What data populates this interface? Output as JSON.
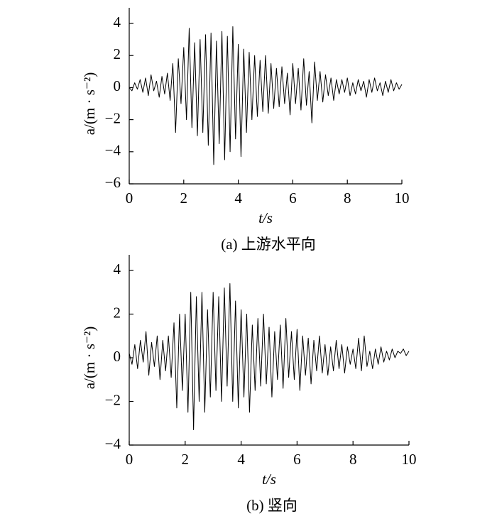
{
  "chart_data": [
    {
      "type": "line",
      "caption": "(a) 上游水平向",
      "xlabel": "t/s",
      "ylabel": "a/(m · s⁻²)",
      "color": "#000000",
      "x": [
        0,
        0.1,
        0.2,
        0.3,
        0.4,
        0.5,
        0.6,
        0.7,
        0.8,
        0.9,
        1,
        1.1,
        1.2,
        1.3,
        1.4,
        1.5,
        1.6,
        1.7,
        1.8,
        1.9,
        2,
        2.1,
        2.2,
        2.3,
        2.4,
        2.5,
        2.6,
        2.7,
        2.8,
        2.9,
        3,
        3.1,
        3.2,
        3.3,
        3.4,
        3.5,
        3.6,
        3.7,
        3.8,
        3.9,
        4,
        4.1,
        4.2,
        4.3,
        4.4,
        4.5,
        4.6,
        4.7,
        4.8,
        4.9,
        5,
        5.1,
        5.2,
        5.3,
        5.4,
        5.5,
        5.6,
        5.7,
        5.8,
        5.9,
        6,
        6.1,
        6.2,
        6.3,
        6.4,
        6.5,
        6.6,
        6.7,
        6.8,
        6.9,
        7,
        7.1,
        7.2,
        7.3,
        7.4,
        7.5,
        7.6,
        7.7,
        7.8,
        7.9,
        8,
        8.1,
        8.2,
        8.3,
        8.4,
        8.5,
        8.6,
        8.7,
        8.8,
        8.9,
        9,
        9.1,
        9.2,
        9.3,
        9.4,
        9.5,
        9.6,
        9.7,
        9.8,
        9.9,
        10
      ],
      "values": [
        0,
        -0.2,
        0.3,
        -0.1,
        0.5,
        -0.3,
        0.6,
        -0.5,
        0.8,
        -0.2,
        0.4,
        -0.6,
        0.7,
        -0.4,
        0.9,
        -0.8,
        1.5,
        -2.8,
        1.8,
        -1.0,
        2.5,
        -2.0,
        3.7,
        -2.5,
        2.8,
        -3.0,
        3.0,
        -2.8,
        3.3,
        -3.6,
        3.4,
        -4.8,
        2.9,
        -3.5,
        3.5,
        -4.5,
        3.2,
        -4.0,
        3.8,
        -3.2,
        2.7,
        -4.3,
        2.4,
        -2.8,
        2.2,
        -2.0,
        2.0,
        -1.8,
        1.7,
        -1.5,
        2.0,
        -1.6,
        1.5,
        -1.3,
        1.2,
        -1.2,
        1.3,
        -1.0,
        0.9,
        -1.7,
        1.5,
        -1.0,
        1.2,
        -1.4,
        1.8,
        -1.1,
        1.0,
        -2.2,
        1.6,
        -0.8,
        1.0,
        -0.9,
        0.8,
        -0.5,
        0.6,
        -0.8,
        0.5,
        -0.4,
        0.5,
        -0.3,
        0.6,
        -0.5,
        0.3,
        -0.4,
        0.5,
        -0.2,
        0.4,
        -0.6,
        0.5,
        -0.3,
        0.6,
        -0.2,
        0.3,
        -0.5,
        0.4,
        -0.3,
        0.5,
        -0.2,
        0.3,
        -0.1,
        0.2
      ],
      "xlim": [
        0,
        10
      ],
      "xticks": [
        0,
        2,
        4,
        6,
        8,
        10
      ],
      "ylim": [
        -6,
        4
      ],
      "yticks": [
        {
          "value": -6,
          "label": "−6"
        },
        {
          "value": -4,
          "label": "−4"
        },
        {
          "value": -2,
          "label": "−2"
        },
        0,
        2,
        4
      ]
    },
    {
      "type": "line",
      "caption": "(b) 竖向",
      "xlabel": "t/s",
      "ylabel": "a/(m · s⁻²)",
      "color": "#000000",
      "x": [
        0,
        0.1,
        0.2,
        0.3,
        0.4,
        0.5,
        0.6,
        0.7,
        0.8,
        0.9,
        1,
        1.1,
        1.2,
        1.3,
        1.4,
        1.5,
        1.6,
        1.7,
        1.8,
        1.9,
        2,
        2.1,
        2.2,
        2.3,
        2.4,
        2.5,
        2.6,
        2.7,
        2.8,
        2.9,
        3,
        3.1,
        3.2,
        3.3,
        3.4,
        3.5,
        3.6,
        3.7,
        3.8,
        3.9,
        4,
        4.1,
        4.2,
        4.3,
        4.4,
        4.5,
        4.6,
        4.7,
        4.8,
        4.9,
        5,
        5.1,
        5.2,
        5.3,
        5.4,
        5.5,
        5.6,
        5.7,
        5.8,
        5.9,
        6,
        6.1,
        6.2,
        6.3,
        6.4,
        6.5,
        6.6,
        6.7,
        6.8,
        6.9,
        7,
        7.1,
        7.2,
        7.3,
        7.4,
        7.5,
        7.6,
        7.7,
        7.8,
        7.9,
        8,
        8.1,
        8.2,
        8.3,
        8.4,
        8.5,
        8.6,
        8.7,
        8.8,
        8.9,
        9,
        9.1,
        9.2,
        9.3,
        9.4,
        9.5,
        9.6,
        9.7,
        9.8,
        9.9,
        10
      ],
      "values": [
        0.2,
        -0.3,
        0.6,
        -0.5,
        0.8,
        -0.2,
        1.2,
        -0.8,
        0.7,
        -0.4,
        1.0,
        -1.0,
        0.8,
        -0.6,
        1.0,
        -0.9,
        1.6,
        -2.3,
        2.0,
        -1.5,
        2.0,
        -2.5,
        3.0,
        -3.3,
        2.8,
        -2.0,
        3.0,
        -2.5,
        2.2,
        -1.8,
        3.0,
        -1.5,
        2.8,
        -2.0,
        3.2,
        -1.3,
        3.4,
        -2.0,
        2.6,
        -2.3,
        2.2,
        -1.8,
        2.0,
        -2.5,
        1.5,
        -1.5,
        1.8,
        -1.3,
        2.0,
        -1.2,
        1.4,
        -1.8,
        1.2,
        -1.0,
        1.5,
        -1.4,
        1.8,
        -0.9,
        1.2,
        -1.0,
        1.3,
        -1.5,
        1.0,
        -0.8,
        0.9,
        -1.2,
        0.8,
        -0.6,
        1.0,
        -0.7,
        0.6,
        -0.8,
        0.5,
        -0.6,
        0.8,
        -0.5,
        0.6,
        -0.7,
        0.5,
        -0.3,
        0.4,
        -0.5,
        0.9,
        -0.6,
        1.0,
        -0.4,
        0.3,
        -0.5,
        0.4,
        -0.3,
        0.5,
        -0.2,
        0.3,
        -0.1,
        0.4,
        0.0,
        0.3,
        0.2,
        0.4,
        0.1,
        0.3
      ],
      "xlim": [
        0,
        10
      ],
      "xticks": [
        0,
        2,
        4,
        6,
        8,
        10
      ],
      "ylim": [
        -4,
        4
      ],
      "yticks": [
        {
          "value": -4,
          "label": "−4"
        },
        {
          "value": -2,
          "label": "−2"
        },
        0,
        2,
        4
      ]
    }
  ]
}
